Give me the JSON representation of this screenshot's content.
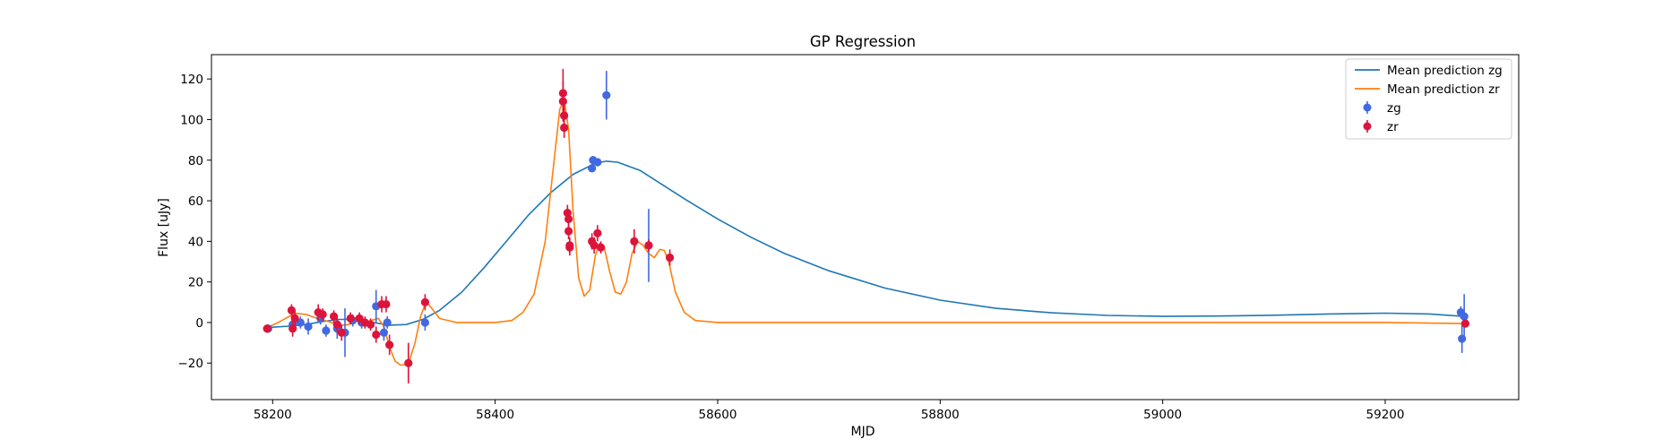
{
  "chart_data": {
    "type": "scatter",
    "title": "GP Regression",
    "xlabel": "MJD",
    "ylabel": "Flux [uJy]",
    "xlim": [
      58145,
      59320
    ],
    "ylim": [
      -38,
      132
    ],
    "xticks": [
      58200,
      58400,
      58600,
      58800,
      59000,
      59200
    ],
    "yticks": [
      -20,
      0,
      20,
      40,
      60,
      80,
      100,
      120
    ],
    "ytick_labels": [
      "−20",
      "0",
      "20",
      "40",
      "60",
      "80",
      "100",
      "120"
    ],
    "grid": false,
    "legend_position": "top-right",
    "lines": [
      {
        "name": "Mean prediction zg",
        "color": "#1f77b4",
        "points": [
          [
            58195,
            -2.5
          ],
          [
            58215,
            -1.8
          ],
          [
            58230,
            -1
          ],
          [
            58245,
            0.5
          ],
          [
            58260,
            1.5
          ],
          [
            58275,
            1.5
          ],
          [
            58290,
            0
          ],
          [
            58305,
            -1.3
          ],
          [
            58320,
            -1
          ],
          [
            58335,
            1.5
          ],
          [
            58350,
            6
          ],
          [
            58370,
            15
          ],
          [
            58390,
            27
          ],
          [
            58410,
            40
          ],
          [
            58430,
            53
          ],
          [
            58450,
            64
          ],
          [
            58470,
            73
          ],
          [
            58490,
            78.5
          ],
          [
            58500,
            79.5
          ],
          [
            58510,
            79
          ],
          [
            58530,
            75
          ],
          [
            58550,
            68
          ],
          [
            58570,
            61
          ],
          [
            58600,
            51
          ],
          [
            58630,
            42
          ],
          [
            58660,
            34
          ],
          [
            58700,
            25.5
          ],
          [
            58750,
            17
          ],
          [
            58800,
            11
          ],
          [
            58850,
            7
          ],
          [
            58900,
            4.8
          ],
          [
            58950,
            3.5
          ],
          [
            59000,
            3
          ],
          [
            59050,
            3.2
          ],
          [
            59100,
            3.6
          ],
          [
            59150,
            4.2
          ],
          [
            59200,
            4.6
          ],
          [
            59240,
            4.2
          ],
          [
            59270,
            3
          ]
        ]
      },
      {
        "name": "Mean prediction zr",
        "color": "#ff7f0e",
        "points": [
          [
            58195,
            -2.5
          ],
          [
            58205,
            0
          ],
          [
            58215,
            3
          ],
          [
            58222,
            4.5
          ],
          [
            58230,
            4
          ],
          [
            58240,
            2
          ],
          [
            58250,
            0.5
          ],
          [
            58260,
            -1.5
          ],
          [
            58268,
            -1
          ],
          [
            58275,
            1
          ],
          [
            58285,
            0.5
          ],
          [
            58295,
            2
          ],
          [
            58300,
            -2
          ],
          [
            58305,
            -12
          ],
          [
            58310,
            -19
          ],
          [
            58315,
            -21
          ],
          [
            58322,
            -20.5
          ],
          [
            58328,
            -10
          ],
          [
            58333,
            3
          ],
          [
            58338,
            10.5
          ],
          [
            58343,
            7
          ],
          [
            58350,
            2
          ],
          [
            58365,
            0
          ],
          [
            58400,
            0
          ],
          [
            58415,
            1
          ],
          [
            58425,
            5
          ],
          [
            58435,
            14
          ],
          [
            58445,
            40
          ],
          [
            58452,
            75
          ],
          [
            58458,
            105
          ],
          [
            58462,
            110
          ],
          [
            58466,
            95
          ],
          [
            58470,
            55
          ],
          [
            58475,
            22
          ],
          [
            58480,
            13
          ],
          [
            58485,
            16
          ],
          [
            58490,
            33
          ],
          [
            58494,
            39
          ],
          [
            58498,
            37
          ],
          [
            58503,
            25
          ],
          [
            58508,
            15
          ],
          [
            58513,
            14
          ],
          [
            58518,
            20
          ],
          [
            58523,
            34
          ],
          [
            58528,
            40
          ],
          [
            58533,
            38
          ],
          [
            58538,
            34
          ],
          [
            58543,
            32
          ],
          [
            58548,
            36
          ],
          [
            58552,
            35.5
          ],
          [
            58556,
            30
          ],
          [
            58562,
            15
          ],
          [
            58570,
            5
          ],
          [
            58580,
            1
          ],
          [
            58600,
            0
          ],
          [
            58800,
            0
          ],
          [
            59000,
            0
          ],
          [
            59200,
            0
          ],
          [
            59270,
            -0.5
          ]
        ]
      }
    ],
    "series": [
      {
        "name": "zg",
        "color": "#4169e1",
        "points": [
          {
            "x": 58196,
            "y": -3,
            "err": 2
          },
          {
            "x": 58218,
            "y": -1,
            "err": 3
          },
          {
            "x": 58225,
            "y": 0,
            "err": 3
          },
          {
            "x": 58232,
            "y": -2,
            "err": 4
          },
          {
            "x": 58243,
            "y": 2,
            "err": 3
          },
          {
            "x": 58248,
            "y": -4,
            "err": 3
          },
          {
            "x": 58258,
            "y": -3,
            "err": 5
          },
          {
            "x": 58265,
            "y": -5,
            "err": 12
          },
          {
            "x": 58272,
            "y": 1,
            "err": 3
          },
          {
            "x": 58280,
            "y": 0,
            "err": 3
          },
          {
            "x": 58293,
            "y": 8,
            "err": 8
          },
          {
            "x": 58300,
            "y": -5,
            "err": 4
          },
          {
            "x": 58303,
            "y": 0,
            "err": 3
          },
          {
            "x": 58337,
            "y": 0,
            "err": 4
          },
          {
            "x": 58487,
            "y": 76,
            "err": 2
          },
          {
            "x": 58488,
            "y": 80,
            "err": 2
          },
          {
            "x": 58492,
            "y": 79,
            "err": 2
          },
          {
            "x": 58500,
            "y": 112,
            "err": 12
          },
          {
            "x": 58538,
            "y": 38,
            "err": 18
          },
          {
            "x": 59268,
            "y": 5,
            "err": 3
          },
          {
            "x": 59269,
            "y": -8,
            "err": 7
          },
          {
            "x": 59271,
            "y": 3,
            "err": 11
          }
        ]
      },
      {
        "name": "zr",
        "color": "#dc143c",
        "points": [
          {
            "x": 58195,
            "y": -3,
            "err": 2
          },
          {
            "x": 58217,
            "y": 6,
            "err": 3
          },
          {
            "x": 58218,
            "y": -3,
            "err": 4
          },
          {
            "x": 58220,
            "y": 2,
            "err": 4
          },
          {
            "x": 58241,
            "y": 5,
            "err": 4
          },
          {
            "x": 58245,
            "y": 4,
            "err": 3
          },
          {
            "x": 58255,
            "y": 3,
            "err": 3
          },
          {
            "x": 58258,
            "y": -1,
            "err": 4
          },
          {
            "x": 58262,
            "y": -5,
            "err": 4
          },
          {
            "x": 58270,
            "y": 2,
            "err": 3
          },
          {
            "x": 58278,
            "y": 2,
            "err": 3
          },
          {
            "x": 58283,
            "y": 0,
            "err": 3
          },
          {
            "x": 58288,
            "y": -1,
            "err": 3
          },
          {
            "x": 58293,
            "y": -6,
            "err": 4
          },
          {
            "x": 58298,
            "y": 9,
            "err": 4
          },
          {
            "x": 58302,
            "y": 9,
            "err": 4
          },
          {
            "x": 58305,
            "y": -11,
            "err": 5
          },
          {
            "x": 58322,
            "y": -20,
            "err": 10
          },
          {
            "x": 58337,
            "y": 10,
            "err": 4
          },
          {
            "x": 58461,
            "y": 113,
            "err": 12
          },
          {
            "x": 58461,
            "y": 109,
            "err": 10
          },
          {
            "x": 58462,
            "y": 102,
            "err": 5
          },
          {
            "x": 58462,
            "y": 96,
            "err": 5
          },
          {
            "x": 58465,
            "y": 54,
            "err": 4
          },
          {
            "x": 58466,
            "y": 51,
            "err": 4
          },
          {
            "x": 58466,
            "y": 45,
            "err": 4
          },
          {
            "x": 58467,
            "y": 38,
            "err": 4
          },
          {
            "x": 58467,
            "y": 37,
            "err": 4
          },
          {
            "x": 58487,
            "y": 40,
            "err": 4
          },
          {
            "x": 58489,
            "y": 38,
            "err": 4
          },
          {
            "x": 58492,
            "y": 44,
            "err": 4
          },
          {
            "x": 58495,
            "y": 37,
            "err": 3
          },
          {
            "x": 58525,
            "y": 40,
            "err": 6
          },
          {
            "x": 58538,
            "y": 38,
            "err": 3
          },
          {
            "x": 58557,
            "y": 32,
            "err": 4
          },
          {
            "x": 59272,
            "y": -0.5,
            "err": 2
          }
        ]
      }
    ]
  }
}
